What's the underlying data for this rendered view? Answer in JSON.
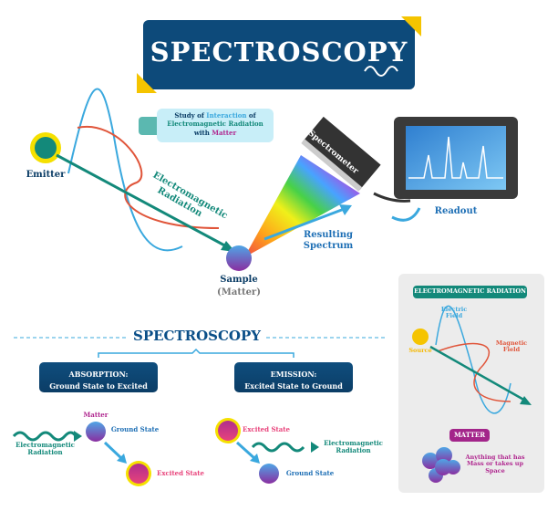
{
  "title": "SPECTROSCOPY",
  "callout": {
    "part1": "Study of ",
    "part2": "Interaction",
    "part3": " of",
    "line2": "Electromagnetic Radiation",
    "line3a": "with ",
    "line3b": "Matter"
  },
  "main": {
    "emitter": "Emitter",
    "em_radiation": "Electromagnetic Radiation",
    "sample": "Sample",
    "sample_sub": "(Matter)",
    "spectrometer": "Spectrometer",
    "resulting_spectrum": "Resulting Spectrum",
    "readout": "Readout"
  },
  "section_title": "SPECTROSCOPY",
  "absorption": {
    "title": "ABSORPTION:",
    "subtitle": "Ground State to Excited State",
    "matter": "Matter",
    "ground": "Ground State",
    "excited": "Excited State",
    "radiation": "Electromagnetic Radiation"
  },
  "emission": {
    "title": "EMISSION:",
    "subtitle": "Excited State to Ground State",
    "excited": "Excited State",
    "ground": "Ground State",
    "radiation": "Electromagnetic Radiation"
  },
  "panel": {
    "title": "ELECTROMAGNETIC RADIATION",
    "electric": "Electric Field",
    "magnetic": "Magnetic Field",
    "source": "Source",
    "matter_title": "MATTER",
    "matter_desc": "Anything that has Mass or takes up Space"
  },
  "colors": {
    "navy": "#0b3d66",
    "teal": "#13897a",
    "blue": "#3aa8de",
    "red": "#e0553a",
    "yellow": "#f5c400",
    "magenta": "#b0278f"
  }
}
